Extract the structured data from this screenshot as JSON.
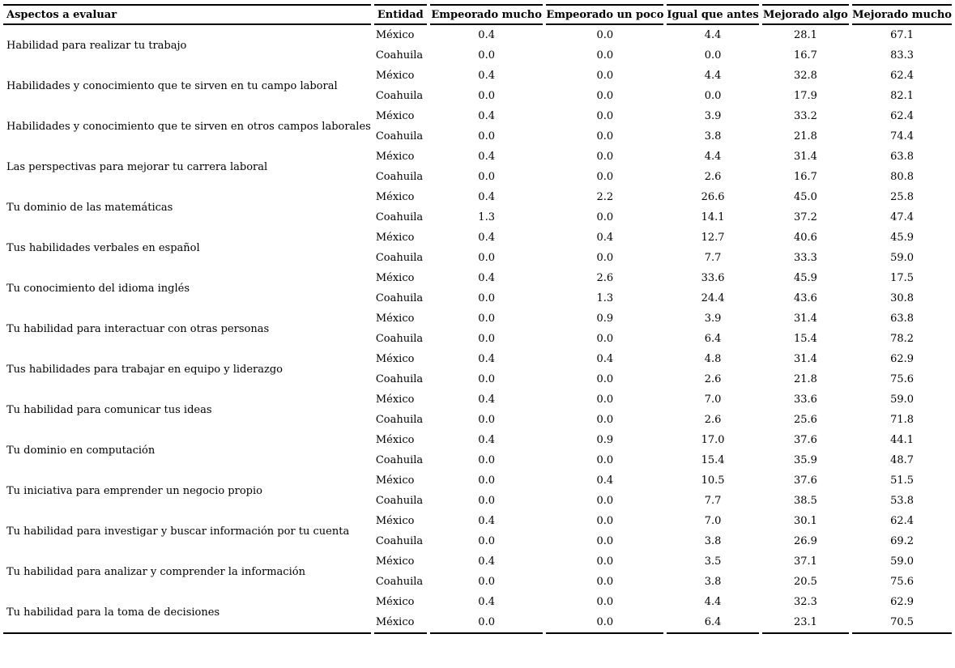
{
  "colors": {
    "background": "#ffffff",
    "text": "#000000",
    "rule_line": "#000000"
  },
  "table": {
    "columns": [
      "Aspectos a evaluar",
      "Entidad",
      "Empeorado mucho",
      "Empeorado un poco",
      "Igual que antes",
      "Mejorado algo",
      "Mejorado mucho"
    ],
    "rows": [
      {
        "aspect": "Habilidad para realizar tu trabajo",
        "entries": [
          {
            "entidad": "México",
            "values": [
              "0.4",
              "0.0",
              "4.4",
              "28.1",
              "67.1"
            ]
          },
          {
            "entidad": "Coahuila",
            "values": [
              "0.0",
              "0.0",
              "0.0",
              "16.7",
              "83.3"
            ]
          }
        ]
      },
      {
        "aspect": "Habilidades y conocimiento que te sirven en tu campo laboral",
        "entries": [
          {
            "entidad": "México",
            "values": [
              "0.4",
              "0.0",
              "4.4",
              "32.8",
              "62.4"
            ]
          },
          {
            "entidad": "Coahuila",
            "values": [
              "0.0",
              "0.0",
              "0.0",
              "17.9",
              "82.1"
            ]
          }
        ]
      },
      {
        "aspect": "Habilidades y conocimiento que te sirven en otros campos laborales",
        "entries": [
          {
            "entidad": "México",
            "values": [
              "0.4",
              "0.0",
              "3.9",
              "33.2",
              "62.4"
            ]
          },
          {
            "entidad": "Coahuila",
            "values": [
              "0.0",
              "0.0",
              "3.8",
              "21.8",
              "74.4"
            ]
          }
        ]
      },
      {
        "aspect": "Las perspectivas para mejorar tu carrera laboral",
        "entries": [
          {
            "entidad": "México",
            "values": [
              "0.4",
              "0.0",
              "4.4",
              "31.4",
              "63.8"
            ]
          },
          {
            "entidad": "Coahuila",
            "values": [
              "0.0",
              "0.0",
              "2.6",
              "16.7",
              "80.8"
            ]
          }
        ]
      },
      {
        "aspect": "Tu dominio de las matemáticas",
        "entries": [
          {
            "entidad": "México",
            "values": [
              "0.4",
              "2.2",
              "26.6",
              "45.0",
              "25.8"
            ]
          },
          {
            "entidad": "Coahuila",
            "values": [
              "1.3",
              "0.0",
              "14.1",
              "37.2",
              "47.4"
            ]
          }
        ]
      },
      {
        "aspect": "Tus habilidades verbales en español",
        "entries": [
          {
            "entidad": "México",
            "values": [
              "0.4",
              "0.4",
              "12.7",
              "40.6",
              "45.9"
            ]
          },
          {
            "entidad": "Coahuila",
            "values": [
              "0.0",
              "0.0",
              "7.7",
              "33.3",
              "59.0"
            ]
          }
        ]
      },
      {
        "aspect": "Tu conocimiento del idioma inglés",
        "entries": [
          {
            "entidad": "México",
            "values": [
              "0.4",
              "2.6",
              "33.6",
              "45.9",
              "17.5"
            ]
          },
          {
            "entidad": "Coahuila",
            "values": [
              "0.0",
              "1.3",
              "24.4",
              "43.6",
              "30.8"
            ]
          }
        ]
      },
      {
        "aspect": "Tu habilidad para interactuar con otras personas",
        "entries": [
          {
            "entidad": "México",
            "values": [
              "0.0",
              "0.9",
              "3.9",
              "31.4",
              "63.8"
            ]
          },
          {
            "entidad": "Coahuila",
            "values": [
              "0.0",
              "0.0",
              "6.4",
              "15.4",
              "78.2"
            ]
          }
        ]
      },
      {
        "aspect": "Tus habilidades para trabajar en equipo y liderazgo",
        "entries": [
          {
            "entidad": "México",
            "values": [
              "0.4",
              "0.4",
              "4.8",
              "31.4",
              "62.9"
            ]
          },
          {
            "entidad": "Coahuila",
            "values": [
              "0.0",
              "0.0",
              "2.6",
              "21.8",
              "75.6"
            ]
          }
        ]
      },
      {
        "aspect": "Tu habilidad para comunicar tus ideas",
        "entries": [
          {
            "entidad": "México",
            "values": [
              "0.4",
              "0.0",
              "7.0",
              "33.6",
              "59.0"
            ]
          },
          {
            "entidad": "Coahuila",
            "values": [
              "0.0",
              "0.0",
              "2.6",
              "25.6",
              "71.8"
            ]
          }
        ]
      },
      {
        "aspect": "Tu dominio en computación",
        "entries": [
          {
            "entidad": "México",
            "values": [
              "0.4",
              "0.9",
              "17.0",
              "37.6",
              "44.1"
            ]
          },
          {
            "entidad": "Coahuila",
            "values": [
              "0.0",
              "0.0",
              "15.4",
              "35.9",
              "48.7"
            ]
          }
        ]
      },
      {
        "aspect": "Tu iniciativa para emprender un negocio propio",
        "entries": [
          {
            "entidad": "México",
            "values": [
              "0.0",
              "0.4",
              "10.5",
              "37.6",
              "51.5"
            ]
          },
          {
            "entidad": "Coahuila",
            "values": [
              "0.0",
              "0.0",
              "7.7",
              "38.5",
              "53.8"
            ]
          }
        ]
      },
      {
        "aspect": "Tu habilidad para investigar y buscar información por tu cuenta",
        "entries": [
          {
            "entidad": "México",
            "values": [
              "0.4",
              "0.0",
              "7.0",
              "30.1",
              "62.4"
            ]
          },
          {
            "entidad": "Coahuila",
            "values": [
              "0.0",
              "0.0",
              "3.8",
              "26.9",
              "69.2"
            ]
          }
        ]
      },
      {
        "aspect": "Tu habilidad para analizar y comprender la información",
        "entries": [
          {
            "entidad": "México",
            "values": [
              "0.4",
              "0.0",
              "3.5",
              "37.1",
              "59.0"
            ]
          },
          {
            "entidad": "Coahuila",
            "values": [
              "0.0",
              "0.0",
              "3.8",
              "20.5",
              "75.6"
            ]
          }
        ]
      },
      {
        "aspect": "Tu habilidad para la toma de decisiones",
        "entries": [
          {
            "entidad": "México",
            "values": [
              "0.4",
              "0.0",
              "4.4",
              "32.3",
              "62.9"
            ]
          },
          {
            "entidad": "México",
            "values": [
              "0.0",
              "0.0",
              "6.4",
              "23.1",
              "70.5"
            ]
          }
        ]
      }
    ]
  }
}
